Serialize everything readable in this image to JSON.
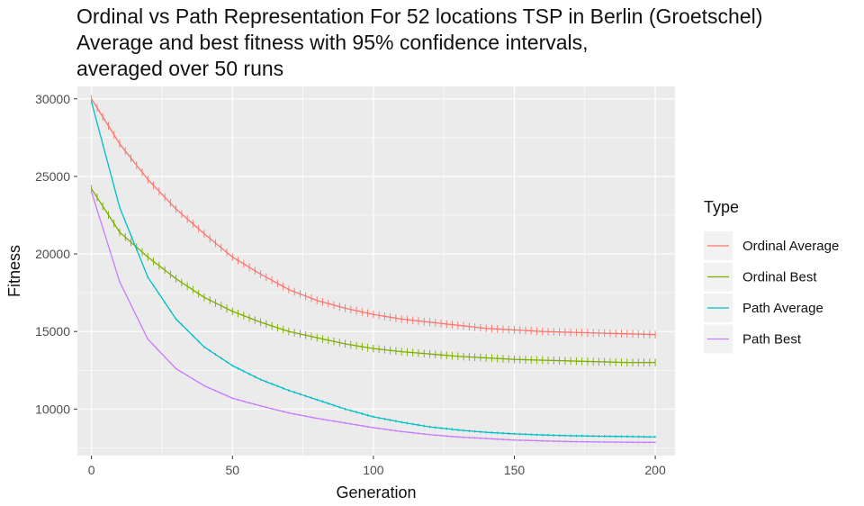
{
  "chart_data": {
    "type": "line",
    "title_lines": [
      "Ordinal vs Path Representation For 52 locations TSP in Berlin (Groetschel)",
      "Average and best fitness with 95% confidence intervals,",
      "averaged over 50 runs"
    ],
    "xlabel": "Generation",
    "ylabel": "Fitness",
    "xlim": [
      -5,
      207
    ],
    "ylim": [
      7000,
      30800
    ],
    "x_ticks": [
      0,
      50,
      100,
      150,
      200
    ],
    "x_tick_labels": [
      "0",
      "50",
      "100",
      "150",
      "200"
    ],
    "y_ticks": [
      10000,
      15000,
      20000,
      25000,
      30000
    ],
    "y_tick_labels": [
      "10000",
      "15000",
      "20000",
      "25000",
      "30000"
    ],
    "grid": true,
    "legend_title": "Type",
    "legend_position": "right",
    "x": [
      0,
      10,
      20,
      30,
      40,
      50,
      60,
      70,
      80,
      90,
      100,
      110,
      120,
      130,
      140,
      150,
      160,
      170,
      180,
      190,
      200
    ],
    "series": [
      {
        "name": "Ordinal Average",
        "color": "#F8766D",
        "ci_halfwidth": 250,
        "values": [
          30000,
          27100,
          24800,
          22900,
          21300,
          19800,
          18700,
          17700,
          17000,
          16500,
          16100,
          15800,
          15600,
          15400,
          15200,
          15100,
          15000,
          14950,
          14900,
          14850,
          14800
        ]
      },
      {
        "name": "Ordinal Best",
        "color": "#7CAE00",
        "ci_halfwidth": 250,
        "values": [
          24200,
          21400,
          19800,
          18400,
          17200,
          16300,
          15600,
          15000,
          14600,
          14200,
          13900,
          13700,
          13550,
          13400,
          13300,
          13200,
          13150,
          13100,
          13050,
          13000,
          13000
        ]
      },
      {
        "name": "Path Average",
        "color": "#00BFC4",
        "ci_halfwidth": 80,
        "values": [
          29800,
          23000,
          18500,
          15800,
          14000,
          12800,
          11900,
          11200,
          10600,
          10000,
          9500,
          9150,
          8850,
          8650,
          8500,
          8400,
          8330,
          8280,
          8250,
          8230,
          8200
        ]
      },
      {
        "name": "Path Best",
        "color": "#C77CFF",
        "ci_halfwidth": 60,
        "values": [
          24000,
          18200,
          14500,
          12600,
          11500,
          10700,
          10200,
          9750,
          9400,
          9100,
          8800,
          8550,
          8350,
          8200,
          8100,
          8000,
          7950,
          7900,
          7880,
          7860,
          7850
        ]
      }
    ]
  }
}
